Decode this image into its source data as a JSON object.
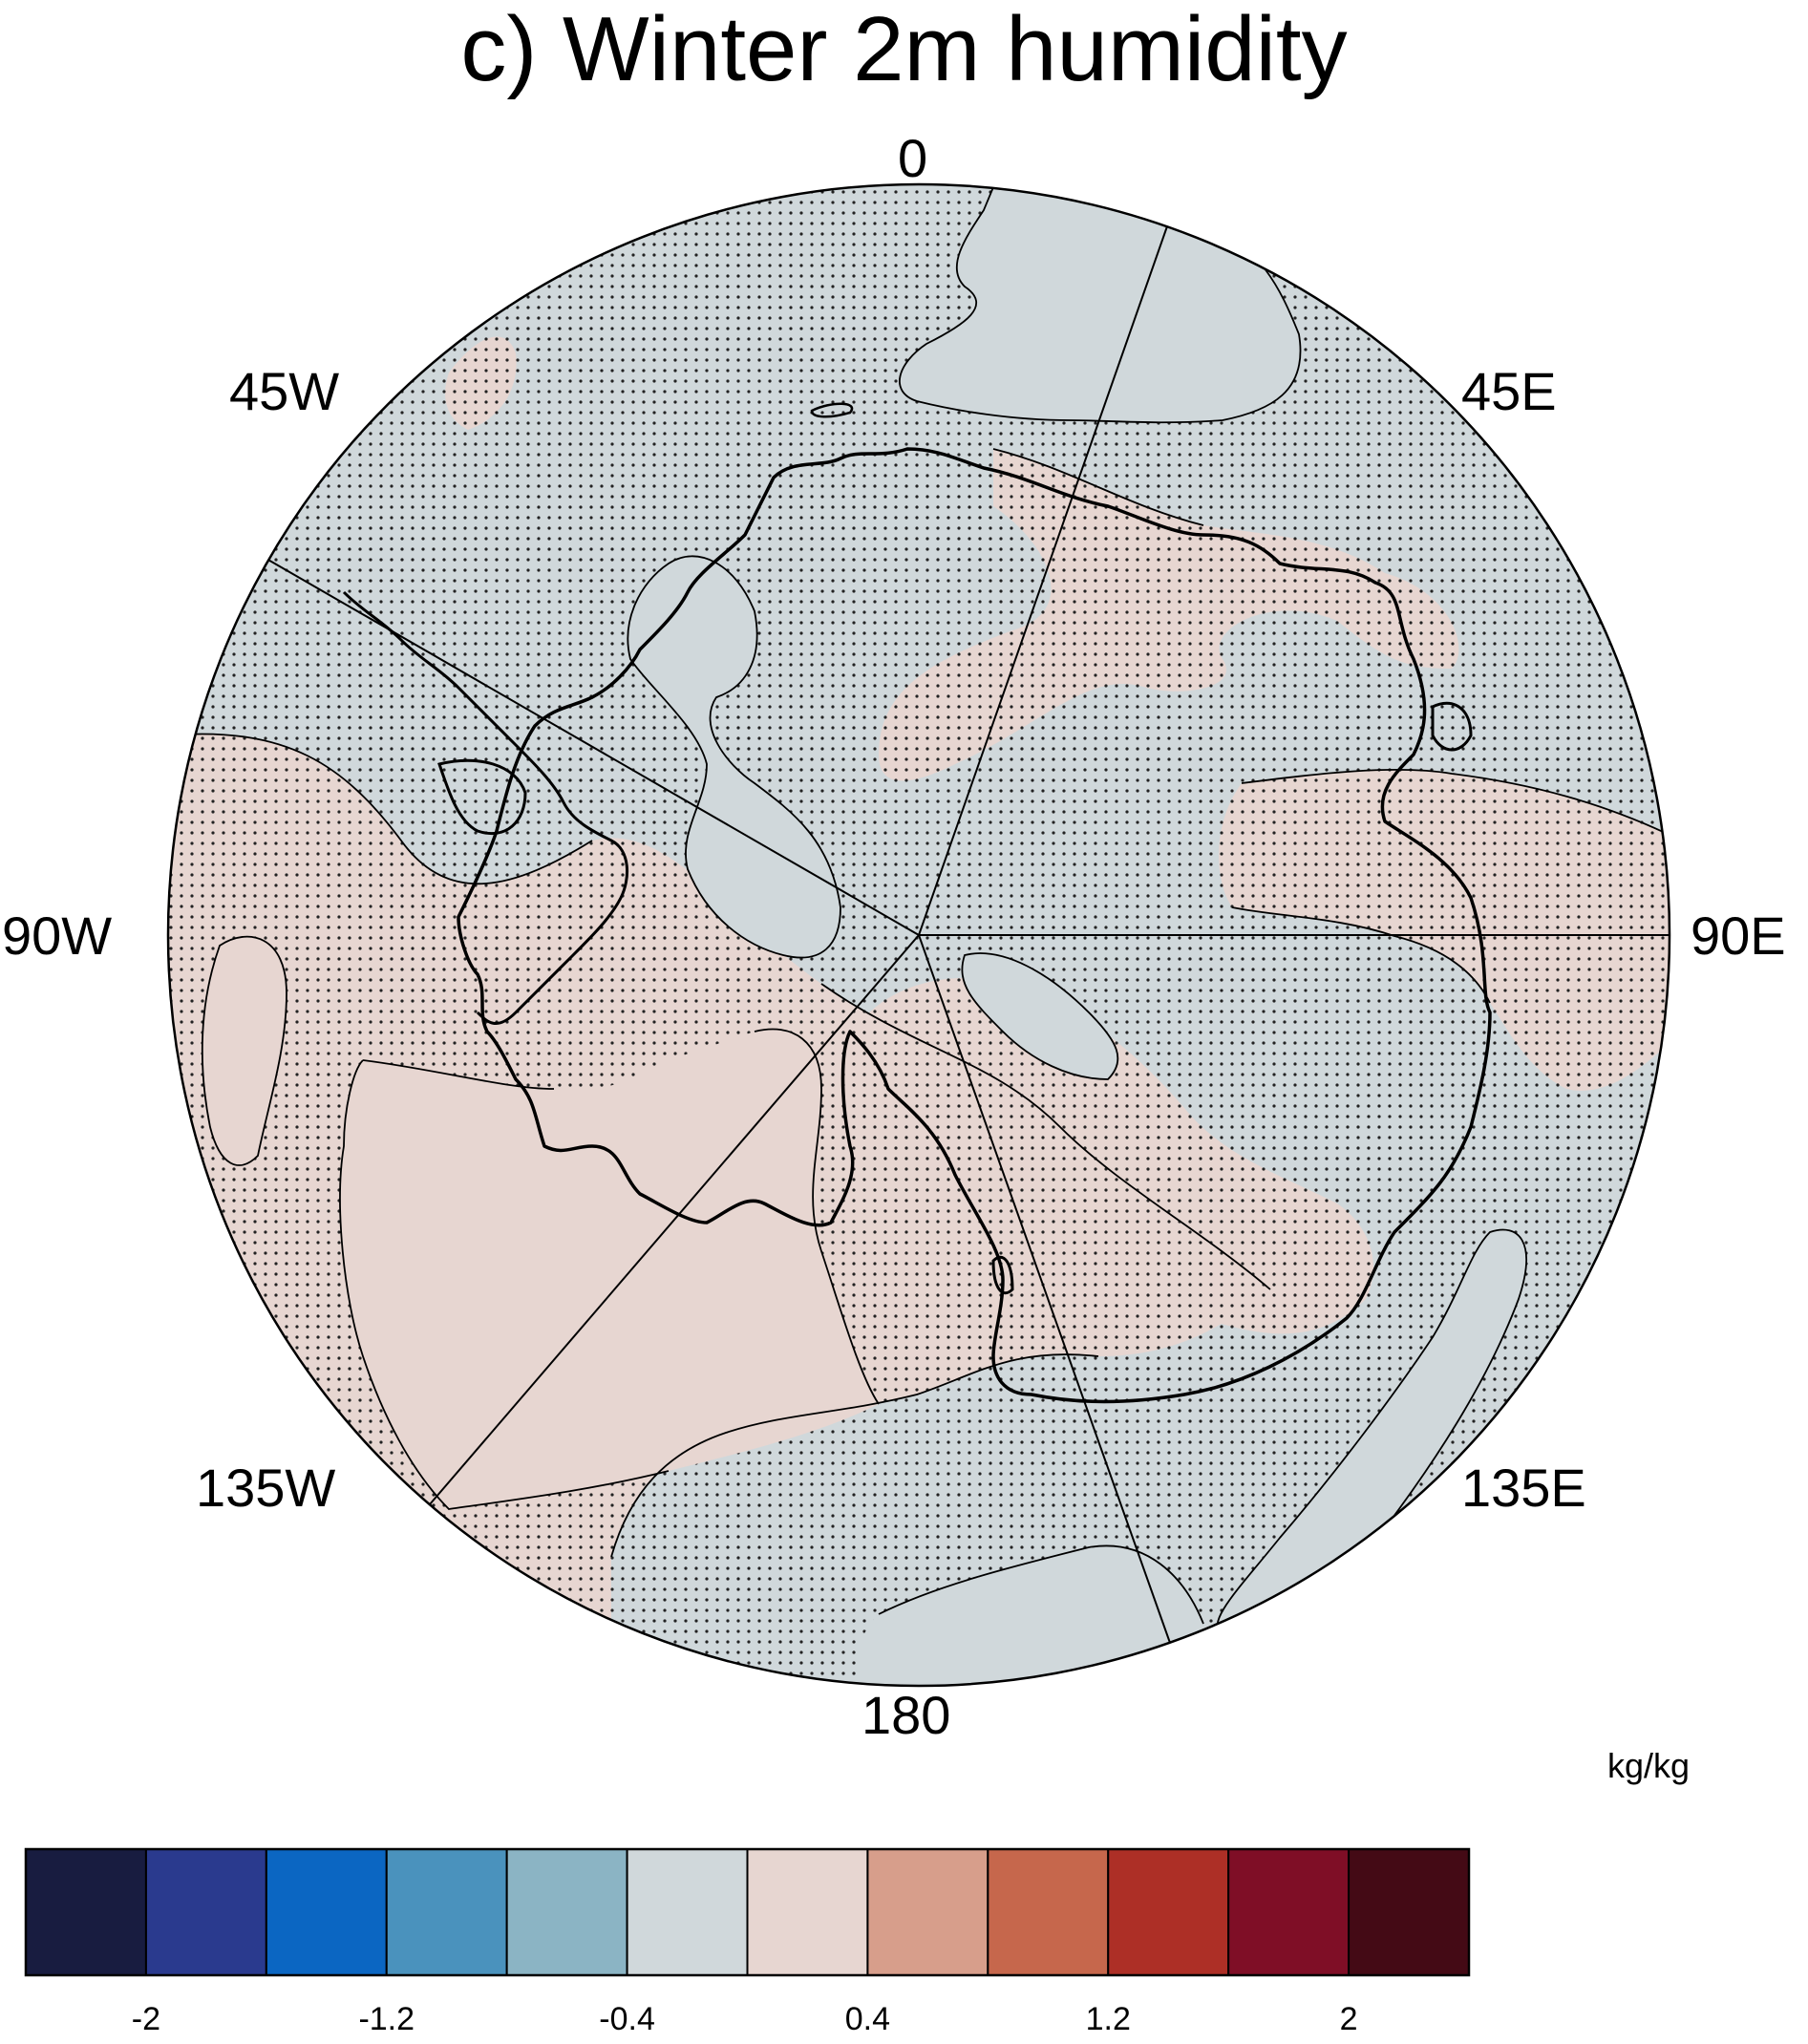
{
  "title": "c) Winter 2m humidity",
  "longitude_labels": {
    "top": "0",
    "top_right": "45E",
    "right": "90E",
    "bottom_right": "135E",
    "bottom": "180",
    "bottom_left": "135W",
    "left": "90W",
    "top_left": "45W"
  },
  "colorbar": {
    "units": "kg/kg",
    "colors": [
      "#181c40",
      "#2a3a8e",
      "#0b66c2",
      "#4a92bd",
      "#8bb4c4",
      "#d0d8db",
      "#e7d6d1",
      "#d79e8b",
      "#c6674c",
      "#ad2f26",
      "#7f0e26",
      "#440a15"
    ],
    "tick_labels": [
      "-2",
      "-1.2",
      "-0.4",
      "0.4",
      "1.2",
      "2"
    ]
  },
  "map_colors": {
    "negative_class": "#d0d8db",
    "positive_class": "#e7d6d1",
    "stipple": "#222222",
    "coastline": "#000000"
  }
}
